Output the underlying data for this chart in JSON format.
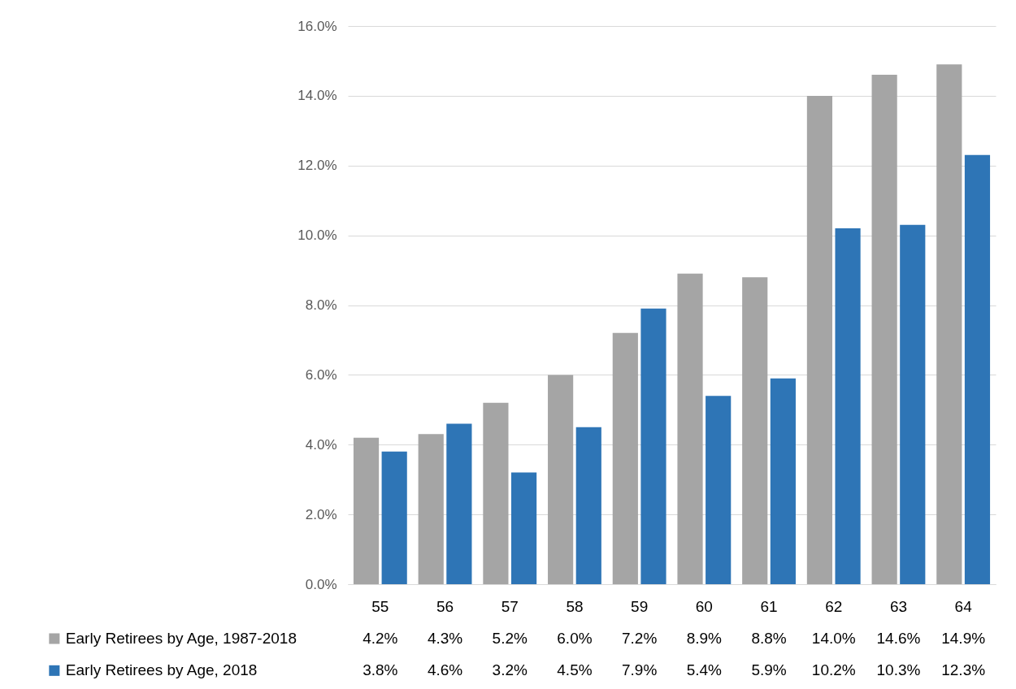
{
  "chart_data": {
    "type": "bar",
    "categories": [
      "55",
      "56",
      "57",
      "58",
      "59",
      "60",
      "61",
      "62",
      "63",
      "64"
    ],
    "series": [
      {
        "name": "Early Retirees by Age, 1987-2018",
        "color": "#a5a5a5",
        "values": [
          4.2,
          4.3,
          5.2,
          6.0,
          7.2,
          8.9,
          8.8,
          14.0,
          14.6,
          14.9
        ],
        "value_labels": [
          "4.2%",
          "4.3%",
          "5.2%",
          "6.0%",
          "7.2%",
          "8.9%",
          "8.8%",
          "14.0%",
          "14.6%",
          "14.9%"
        ]
      },
      {
        "name": "Early Retirees by Age, 2018",
        "color": "#2e75b6",
        "values": [
          3.8,
          4.6,
          3.2,
          4.5,
          7.9,
          5.4,
          5.9,
          10.2,
          10.3,
          12.3
        ],
        "value_labels": [
          "3.8%",
          "4.6%",
          "3.2%",
          "4.5%",
          "7.9%",
          "5.4%",
          "5.9%",
          "10.2%",
          "10.3%",
          "12.3%"
        ]
      }
    ],
    "ylim": [
      0,
      16
    ],
    "yticks": [
      {
        "value": 0,
        "label": "0.0%"
      },
      {
        "value": 2,
        "label": "2.0%"
      },
      {
        "value": 4,
        "label": "4.0%"
      },
      {
        "value": 6,
        "label": "6.0%"
      },
      {
        "value": 8,
        "label": "8.0%"
      },
      {
        "value": 10,
        "label": "10.0%"
      },
      {
        "value": 12,
        "label": "12.0%"
      },
      {
        "value": 14,
        "label": "14.0%"
      },
      {
        "value": 16,
        "label": "16.0%"
      }
    ],
    "grid": "y",
    "legend": "bottom"
  }
}
